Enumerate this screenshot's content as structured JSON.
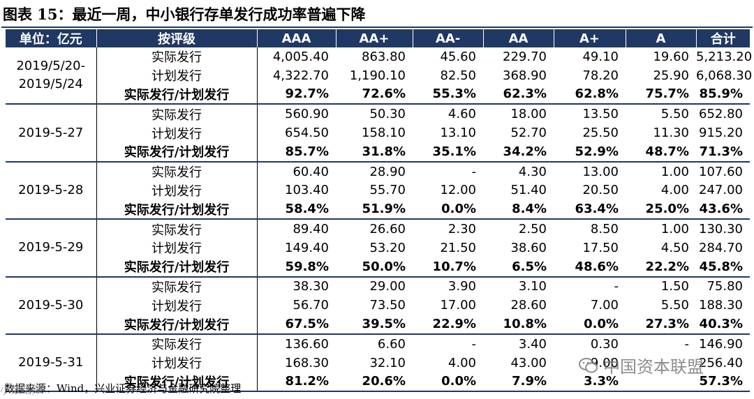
{
  "title": "图表 15：最近一周，中小银行存单发行成功率普遍下降",
  "headers": [
    "单位：亿元",
    "按评级",
    "AAA",
    "AA+",
    "AA-",
    "AA",
    "A+",
    "A",
    "合计"
  ],
  "groups": [
    {
      "date": "2019/5/20-\n2019/5/24",
      "rows": [
        {
          "label": "实际发行",
          "values": [
            "4,005.40",
            "863.80",
            "45.60",
            "229.70",
            "49.10",
            "19.60",
            "5,213.20"
          ]
        },
        {
          "label": "计划发行",
          "values": [
            "4,322.70",
            "1,190.10",
            "82.50",
            "368.90",
            "78.20",
            "25.90",
            "6,068.30"
          ]
        },
        {
          "label": "实际发行/计划发行",
          "values": [
            "92.7%",
            "72.6%",
            "55.3%",
            "62.3%",
            "62.8%",
            "75.7%",
            "85.9%"
          ]
        }
      ]
    },
    {
      "date": "2019-5-27",
      "rows": [
        {
          "label": "实际发行",
          "values": [
            "560.90",
            "50.30",
            "4.60",
            "18.00",
            "13.50",
            "5.50",
            "652.80"
          ]
        },
        {
          "label": "计划发行",
          "values": [
            "654.50",
            "158.10",
            "13.10",
            "52.70",
            "25.50",
            "11.30",
            "915.20"
          ]
        },
        {
          "label": "实际发行/计划发行",
          "values": [
            "85.7%",
            "31.8%",
            "35.1%",
            "34.2%",
            "52.9%",
            "48.7%",
            "71.3%"
          ]
        }
      ]
    },
    {
      "date": "2019-5-28",
      "rows": [
        {
          "label": "实际发行",
          "values": [
            "60.40",
            "28.90",
            "-",
            "4.30",
            "13.00",
            "1.00",
            "107.60"
          ]
        },
        {
          "label": "计划发行",
          "values": [
            "103.40",
            "55.70",
            "12.00",
            "51.40",
            "20.50",
            "4.00",
            "247.00"
          ]
        },
        {
          "label": "实际发行/计划发行",
          "values": [
            "58.4%",
            "51.9%",
            "0.0%",
            "8.4%",
            "63.4%",
            "25.0%",
            "43.6%"
          ]
        }
      ]
    },
    {
      "date": "2019-5-29",
      "rows": [
        {
          "label": "实际发行",
          "values": [
            "89.40",
            "26.60",
            "2.30",
            "2.50",
            "8.50",
            "1.00",
            "130.30"
          ]
        },
        {
          "label": "计划发行",
          "values": [
            "149.40",
            "53.20",
            "21.50",
            "38.60",
            "17.50",
            "4.50",
            "284.70"
          ]
        },
        {
          "label": "实际发行/计划发行",
          "values": [
            "59.8%",
            "50.0%",
            "10.7%",
            "6.5%",
            "48.6%",
            "22.2%",
            "45.8%"
          ]
        }
      ]
    },
    {
      "date": "2019-5-30",
      "rows": [
        {
          "label": "实际发行",
          "values": [
            "38.30",
            "29.00",
            "3.90",
            "3.10",
            "-",
            "1.50",
            "75.80"
          ]
        },
        {
          "label": "计划发行",
          "values": [
            "56.70",
            "73.50",
            "17.00",
            "28.60",
            "7.00",
            "5.50",
            "188.30"
          ]
        },
        {
          "label": "实际发行/计划发行",
          "values": [
            "67.5%",
            "39.5%",
            "22.9%",
            "10.8%",
            "0.0%",
            "27.3%",
            "40.3%"
          ]
        }
      ]
    },
    {
      "date": "2019-5-31",
      "rows": [
        {
          "label": "实际发行",
          "values": [
            "136.60",
            "6.60",
            "-",
            "3.40",
            "0.30",
            "-",
            "146.90"
          ]
        },
        {
          "label": "计划发行",
          "values": [
            "168.30",
            "32.10",
            "4.00",
            "43.00",
            "9.00",
            "",
            "256.40"
          ]
        },
        {
          "label": "实际发行/计划发行",
          "values": [
            "81.2%",
            "20.6%",
            "0.0%",
            "7.9%",
            "3.3%",
            "",
            "57.3%"
          ]
        }
      ]
    }
  ],
  "source": "数据来源：Wind，兴业证券经济与金融研究院整理",
  "watermark": "中国资本联盟",
  "watermark_left": "小数踏撵",
  "colors": {
    "header_bg": "#1f3864",
    "header_text": "#ffffff"
  }
}
